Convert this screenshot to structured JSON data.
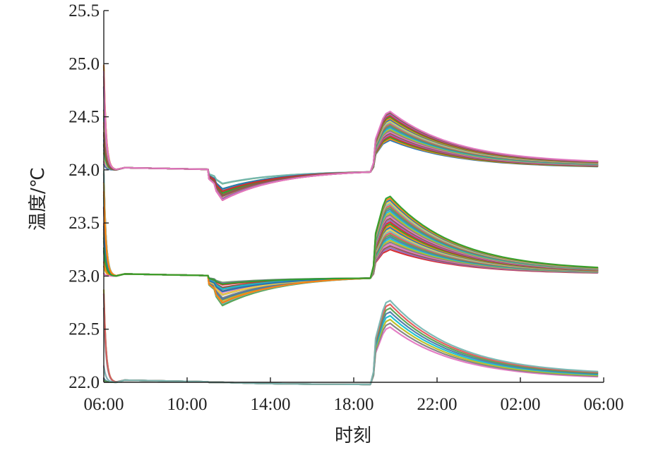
{
  "chart_data": {
    "type": "line",
    "title": "",
    "xlabel": "时刻",
    "ylabel": "温度/℃",
    "ylim": [
      22.0,
      25.5
    ],
    "xlim": [
      "06:00",
      "06:00"
    ],
    "x_ticks": [
      "06:00",
      "10:00",
      "14:00",
      "18:00",
      "22:00",
      "02:00",
      "06:00"
    ],
    "y_ticks": [
      "22.0",
      "22.5",
      "23.0",
      "23.5",
      "24.0",
      "24.5",
      "25.0",
      "25.5"
    ],
    "grid": false,
    "legend": false,
    "colors": [
      "#1f77b4",
      "#ff7f0e",
      "#2ca02c",
      "#d62728",
      "#9467bd",
      "#8c564b",
      "#e377c2",
      "#7f7f7f",
      "#bcbd22",
      "#17becf",
      "#4e79a7",
      "#59a14f",
      "#e15759",
      "#76b7b2",
      "#edc948"
    ],
    "series_groups": [
      {
        "setpoint": 24.0,
        "initial_range": [
          24.0,
          25.0
        ],
        "midday_min_range": [
          23.7,
          23.88
        ],
        "evening_peak_range": [
          24.28,
          24.55
        ],
        "end_range": [
          24.02,
          24.06
        ],
        "count": 22
      },
      {
        "setpoint": 23.0,
        "initial_range": [
          23.0,
          24.0
        ],
        "midday_min_range": [
          22.72,
          22.95
        ],
        "evening_peak_range": [
          23.25,
          23.75
        ],
        "end_range": [
          23.02,
          23.05
        ],
        "count": 30
      },
      {
        "setpoint": 22.0,
        "initial_range": [
          22.0,
          23.0
        ],
        "midday_min_range": [
          22.0,
          22.0
        ],
        "evening_peak_range": [
          22.52,
          22.77
        ],
        "end_range": [
          22.03,
          22.07
        ],
        "count": 8
      }
    ]
  }
}
